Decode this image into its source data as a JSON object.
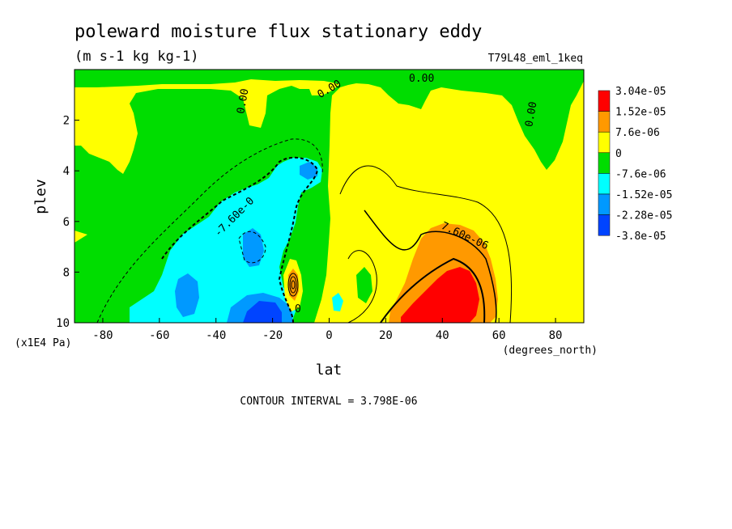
{
  "chart_data": {
    "type": "heatmap",
    "title": "poleward moisture flux stationary eddy",
    "subtitle": "(m s-1 kg kg-1)",
    "dataset_label": "T79L48_eml_1keq",
    "xlabel": "lat",
    "xunits": "(degrees_north)",
    "ylabel": "plev",
    "yunits": "(x1E4 Pa)",
    "xlim": [
      -90,
      90
    ],
    "ylim": [
      10,
      0
    ],
    "xticks": [
      -80,
      -60,
      -40,
      -20,
      0,
      20,
      40,
      60,
      80
    ],
    "yticks": [
      2,
      4,
      6,
      8,
      10
    ],
    "contour_interval_text": "CONTOUR INTERVAL = 3.798E-06",
    "contour_labels": [
      "0.00",
      "0.00",
      "0.00",
      "0.00",
      "-7.60e-0",
      "7.60e-06",
      "0"
    ],
    "legend": {
      "placement": "right",
      "labels": [
        "3.04e-05",
        "1.52e-05",
        "7.6e-06",
        "0",
        "-7.6e-06",
        "-1.52e-05",
        "-2.28e-05",
        "-3.8e-05"
      ],
      "colors": [
        "#ff0000",
        "#ff9900",
        "#ffff00",
        "#00dd00",
        "#00ffff",
        "#0099ff",
        "#0044ff"
      ]
    },
    "regions": [
      {
        "name": "upper-green",
        "color": "#00dd00"
      },
      {
        "name": "sh-low-level-negative",
        "color": "#00dd00"
      },
      {
        "name": "nh-moisture-flux-max",
        "color": "#ff0000"
      }
    ]
  }
}
